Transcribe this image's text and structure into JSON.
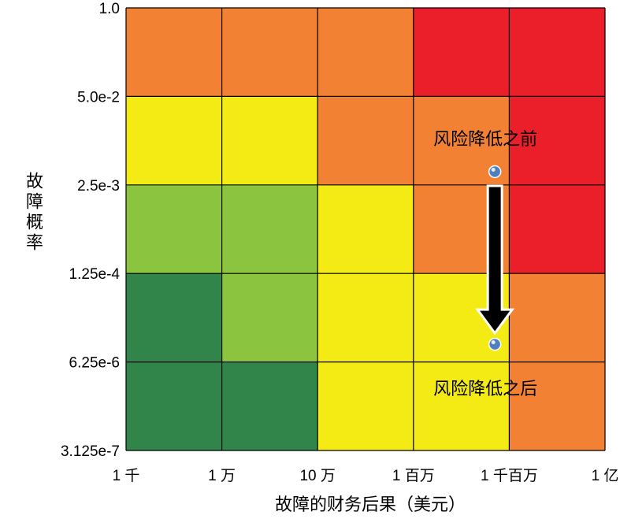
{
  "chart_data": {
    "type": "heatmap",
    "title": "",
    "xlabel": "故障的财务后果（美元）",
    "ylabel": "故障概率",
    "x_tick_labels": [
      "1 千",
      "1 万",
      "10 万",
      "1 百万",
      "1 千百万",
      "1 亿"
    ],
    "y_tick_labels": [
      "1.0",
      "5.0e-2",
      "2.5e-3",
      "1.25e-4",
      "6.25e-6",
      "3.125e-7"
    ],
    "grid": true,
    "risk_levels": [
      "very-low",
      "low",
      "medium",
      "high",
      "very-high"
    ],
    "level_colors": {
      "very-low": "#31854a",
      "low": "#8bc540",
      "medium": "#f4eb14",
      "high": "#f38133",
      "very-high": "#eb1f2a"
    },
    "cells": [
      [
        "high",
        "high",
        "high",
        "very-high",
        "very-high"
      ],
      [
        "medium",
        "medium",
        "high",
        "high",
        "very-high"
      ],
      [
        "low",
        "low",
        "medium",
        "high",
        "very-high"
      ],
      [
        "very-low",
        "low",
        "medium",
        "medium",
        "high"
      ],
      [
        "very-low",
        "very-low",
        "medium",
        "medium",
        "high"
      ]
    ],
    "points": [
      {
        "label": "风险降低之前",
        "x_cell": 3.85,
        "y_cell": 1.85
      },
      {
        "label": "风险降低之后",
        "x_cell": 3.85,
        "y_cell": 3.8
      }
    ],
    "arrow": {
      "from_point": 0,
      "to_point": 1
    }
  },
  "colors": {
    "grid_line": "#000000",
    "point_fill": "#4f7fbf",
    "arrow_fill": "#000000",
    "arrow_outline": "#ffffff"
  }
}
